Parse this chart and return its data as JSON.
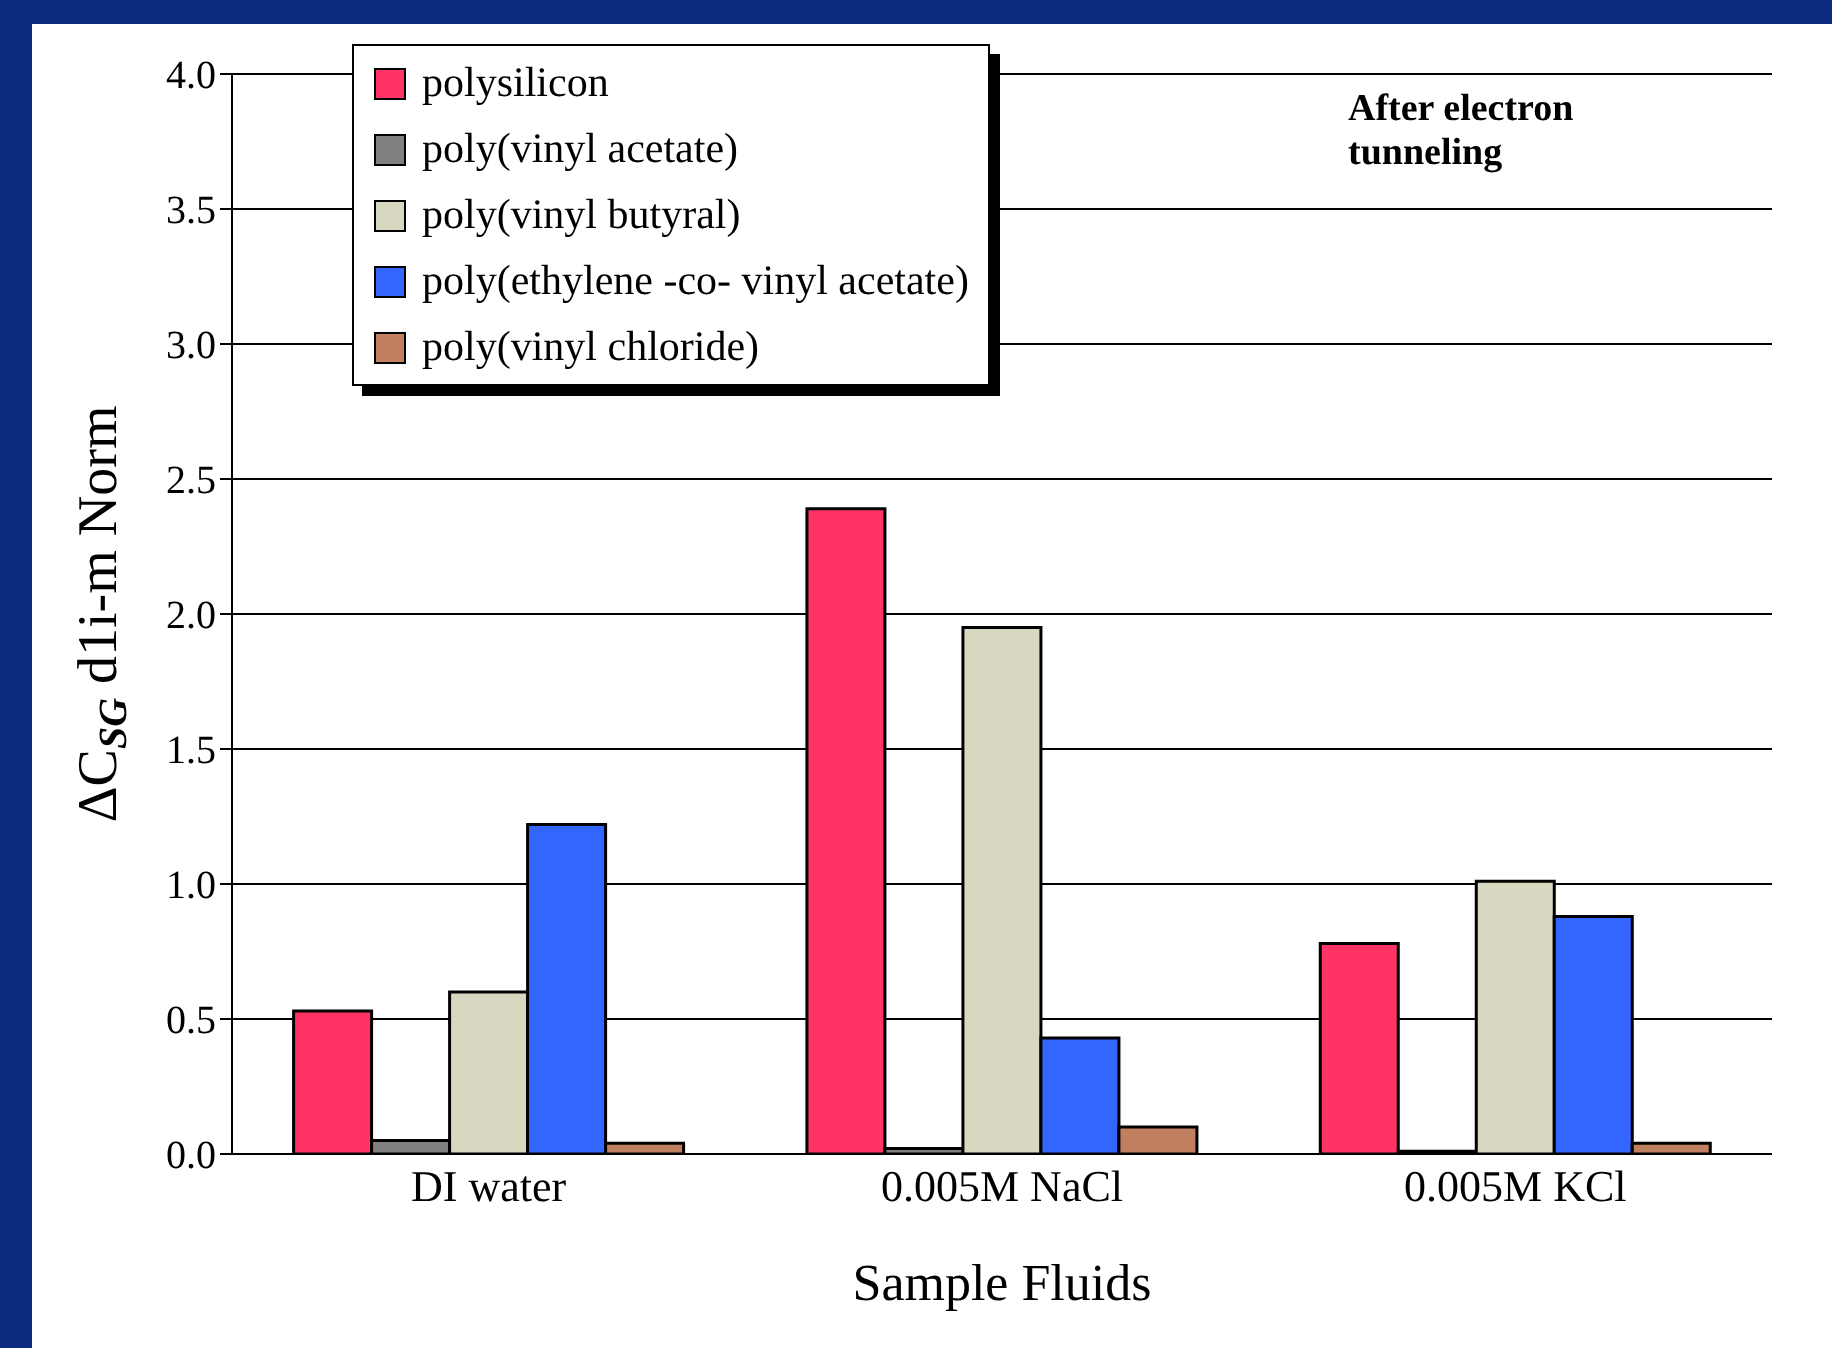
{
  "chart_data": {
    "type": "bar",
    "xlabel": "Sample Fluids",
    "ylabel": "ΔC$_{SG}$ d1i-m Norm",
    "categories": [
      "DI water",
      "0.005M NaCl",
      "0.005M KCl"
    ],
    "series": [
      {
        "name": "polysilicon",
        "color": "#ff3366",
        "values": [
          0.53,
          2.39,
          0.78
        ]
      },
      {
        "name": "poly(vinyl acetate)",
        "color": "#808080",
        "values": [
          0.05,
          0.02,
          0.01
        ]
      },
      {
        "name": "poly(vinyl butyral)",
        "color": "#d8d8c0",
        "values": [
          0.6,
          1.95,
          1.01
        ]
      },
      {
        "name": "poly(ethylene -co- vinyl acetate)",
        "color": "#3366ff",
        "values": [
          1.22,
          0.43,
          0.88
        ]
      },
      {
        "name": "poly(vinyl chloride)",
        "color": "#c08060",
        "values": [
          0.04,
          0.1,
          0.04
        ]
      }
    ],
    "ylim": [
      0,
      4
    ],
    "yticks": [
      {
        "value": 0,
        "label": "0.0"
      },
      {
        "value": 0.5,
        "label": "0.5"
      },
      {
        "value": 1,
        "label": "1.0"
      },
      {
        "value": 1.5,
        "label": "1.5"
      },
      {
        "value": 2,
        "label": "2.0"
      },
      {
        "value": 2.5,
        "label": "2.5"
      },
      {
        "value": 3,
        "label": "3.0"
      },
      {
        "value": 3.5,
        "label": "3.5"
      },
      {
        "value": 4,
        "label": "4.0"
      }
    ],
    "grid": "y",
    "legend": "top left",
    "annotations": [
      "After electron tunneling"
    ]
  }
}
